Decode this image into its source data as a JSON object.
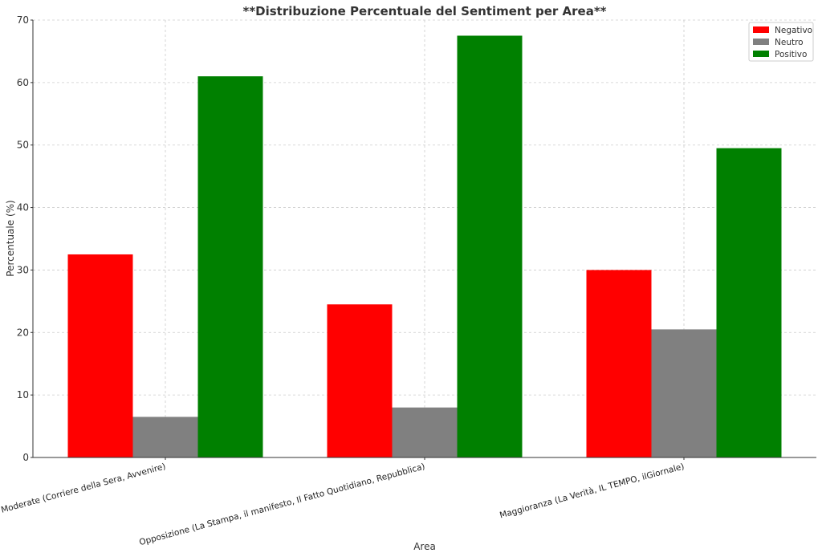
{
  "chart_data": {
    "type": "bar",
    "title": "**Distribuzione Percentuale del Sentiment per Area**",
    "xlabel": "Area",
    "ylabel": "Percentuale (%)",
    "ylim": [
      0,
      70
    ],
    "yticks": [
      0,
      10,
      20,
      30,
      40,
      50,
      60,
      70
    ],
    "grid": true,
    "legend_position": "top-right",
    "categories": [
      "Moderate (Corriere della Sera, Avvenire)",
      "Opposizione (La Stampa, il manifesto, Il Fatto Quotidiano, Repubblica)",
      "Maggioranza (La Verità, IL TEMPO, ilGiornale)"
    ],
    "series": [
      {
        "name": "Negativo",
        "color": "#ff0000",
        "values": [
          32.5,
          24.5,
          30.0
        ]
      },
      {
        "name": "Neutro",
        "color": "#808080",
        "values": [
          6.5,
          8.0,
          20.5
        ]
      },
      {
        "name": "Positivo",
        "color": "#008000",
        "values": [
          61.0,
          67.5,
          49.5
        ]
      }
    ]
  }
}
